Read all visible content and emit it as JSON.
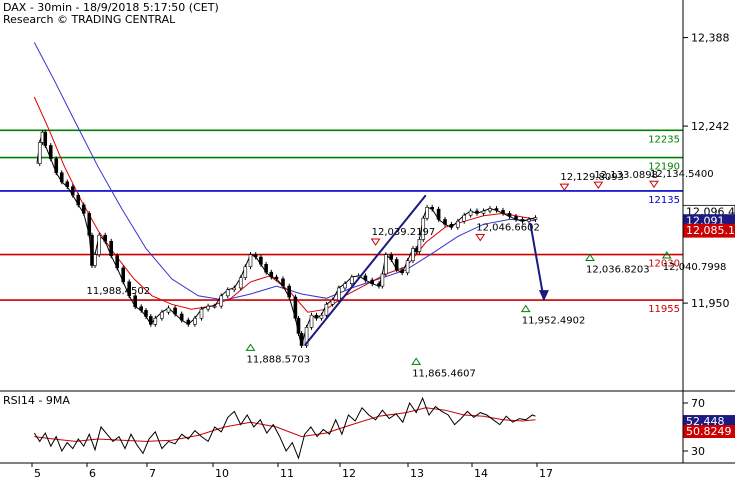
{
  "header": {
    "title": "DAX - 30min - 18/9/2018 5:17:50 (CET)",
    "credit": "Research © TRADING CENTRAL"
  },
  "chart_data": [
    {
      "type": "candlestick",
      "panel": "price",
      "ylim": [
        11805,
        12450
      ],
      "y_ticks": [
        12388,
        12242,
        11950
      ],
      "y_tick_labels": [
        "12,388",
        "12,242",
        "11,950"
      ],
      "x_tick_labels": [
        "5",
        "6",
        "7",
        "10",
        "11",
        "12",
        "13",
        "14",
        "17"
      ],
      "colors": {
        "resistance": "#008000",
        "pivot": "#0000cc",
        "support": "#cc0000",
        "ma_fast": "#dd0000",
        "ma_slow": "#3333cc",
        "price": "#000000",
        "forecast": "#1a1a80"
      },
      "levels": [
        {
          "value": 12235,
          "label": "12235",
          "role": "resistance"
        },
        {
          "value": 12190,
          "label": "12190",
          "role": "resistance"
        },
        {
          "value": 12135,
          "label": "12135",
          "role": "pivot"
        },
        {
          "value": 12030,
          "label": "12030",
          "role": "support"
        },
        {
          "value": 11955,
          "label": "11955",
          "role": "support"
        }
      ],
      "price_badges": [
        {
          "value": 12096.4,
          "label": "12,096.4",
          "bg": "#ffffff",
          "fg": "#000000"
        },
        {
          "value": 12091,
          "label": "12,091",
          "bg": "#1a1a80",
          "fg": "#ffffff"
        },
        {
          "value": 12085.1,
          "label": "12,085.1",
          "bg": "#cc0000",
          "fg": "#ffffff"
        }
      ],
      "swing_highs": [
        {
          "label": "12,039.2197",
          "value": 12039.2197,
          "x": 10.45
        },
        {
          "label": "12,046.6602",
          "value": 12046.6602,
          "x": 12.05
        },
        {
          "label": "12,129.8093",
          "value": 12129.8093,
          "x": 13.35
        },
        {
          "label": "12,133.0898",
          "value": 12133.0898,
          "x": 13.88
        },
        {
          "label": "12,134.5400",
          "value": 12134.54,
          "x": 14.75
        }
      ],
      "swing_lows": [
        {
          "label": "11,888.5703",
          "value": 11888.5703,
          "x": 8.5
        },
        {
          "label": "11,865.4607",
          "value": 11865.4607,
          "x": 11.05
        },
        {
          "label": "11,952.4902",
          "value": 11952.4902,
          "x": 12.75
        },
        {
          "label": "12,036.8203",
          "value": 12036.8203,
          "x": 13.75
        },
        {
          "label": "12,040.7998",
          "value": 12040.7998,
          "x": 14.95
        }
      ],
      "extra_labels": [
        {
          "label": "11,988.4502",
          "value": 11988.4502
        }
      ],
      "close": [
        [
          5.0,
          12180
        ],
        [
          5.05,
          12215
        ],
        [
          5.1,
          12232
        ],
        [
          5.15,
          12210
        ],
        [
          5.25,
          12188
        ],
        [
          5.35,
          12165
        ],
        [
          5.45,
          12150
        ],
        [
          5.55,
          12142
        ],
        [
          5.65,
          12128
        ],
        [
          5.75,
          12112
        ],
        [
          5.85,
          12098
        ],
        [
          5.95,
          12062
        ],
        [
          6.0,
          12012
        ],
        [
          6.05,
          12030
        ],
        [
          6.12,
          12062
        ],
        [
          6.22,
          12052
        ],
        [
          6.32,
          12028
        ],
        [
          6.42,
          12008
        ],
        [
          6.52,
          11985
        ],
        [
          6.62,
          11962
        ],
        [
          6.72,
          11944
        ],
        [
          6.82,
          11938
        ],
        [
          6.9,
          11928
        ],
        [
          6.98,
          11915
        ],
        [
          7.05,
          11925
        ],
        [
          7.15,
          11935
        ],
        [
          7.25,
          11942
        ],
        [
          7.35,
          11932
        ],
        [
          7.45,
          11922
        ],
        [
          7.55,
          11915
        ],
        [
          7.65,
          11925
        ],
        [
          7.75,
          11940
        ],
        [
          7.85,
          11945
        ],
        [
          7.95,
          11945
        ],
        [
          8.05,
          11962
        ],
        [
          8.15,
          11972
        ],
        [
          8.25,
          11975
        ],
        [
          8.35,
          11992
        ],
        [
          8.42,
          12010
        ],
        [
          8.5,
          12030
        ],
        [
          8.58,
          12026
        ],
        [
          8.66,
          12014
        ],
        [
          8.74,
          12001
        ],
        [
          8.82,
          11993
        ],
        [
          8.9,
          11990
        ],
        [
          9.0,
          11978
        ],
        [
          9.1,
          11960
        ],
        [
          9.2,
          11925
        ],
        [
          9.25,
          11900
        ],
        [
          9.3,
          11880
        ],
        [
          9.38,
          11910
        ],
        [
          9.46,
          11930
        ],
        [
          9.54,
          11925
        ],
        [
          9.62,
          11930
        ],
        [
          9.7,
          11948
        ],
        [
          9.8,
          11955
        ],
        [
          9.9,
          11975
        ],
        [
          10.0,
          11982
        ],
        [
          10.1,
          11993
        ],
        [
          10.2,
          11995
        ],
        [
          10.3,
          11988
        ],
        [
          10.4,
          11982
        ],
        [
          10.5,
          11978
        ],
        [
          10.55,
          11998
        ],
        [
          10.6,
          12030
        ],
        [
          10.68,
          12022
        ],
        [
          10.76,
          12005
        ],
        [
          10.84,
          12000
        ],
        [
          10.92,
          12020
        ],
        [
          11.0,
          12040
        ],
        [
          11.05,
          12035
        ],
        [
          11.1,
          12055
        ],
        [
          11.16,
          12090
        ],
        [
          11.22,
          12108
        ],
        [
          11.3,
          12105
        ],
        [
          11.4,
          12088
        ],
        [
          11.5,
          12080
        ],
        [
          11.6,
          12075
        ],
        [
          11.7,
          12085
        ],
        [
          11.8,
          12095
        ],
        [
          11.9,
          12102
        ],
        [
          12.0,
          12098
        ],
        [
          12.1,
          12102
        ],
        [
          12.2,
          12106
        ],
        [
          12.3,
          12103
        ],
        [
          12.4,
          12098
        ],
        [
          12.5,
          12093
        ],
        [
          12.6,
          12088
        ],
        [
          12.7,
          12085
        ],
        [
          12.8,
          12088
        ],
        [
          12.9,
          12091
        ]
      ],
      "ma_fast": [
        [
          4.95,
          12290
        ],
        [
          5.2,
          12240
        ],
        [
          5.5,
          12175
        ],
        [
          5.8,
          12120
        ],
        [
          6.1,
          12070
        ],
        [
          6.4,
          12028
        ],
        [
          6.7,
          11990
        ],
        [
          7.0,
          11962
        ],
        [
          7.3,
          11948
        ],
        [
          7.6,
          11940
        ],
        [
          7.9,
          11945
        ],
        [
          8.2,
          11958
        ],
        [
          8.5,
          11985
        ],
        [
          8.8,
          11995
        ],
        [
          9.1,
          11970
        ],
        [
          9.4,
          11935
        ],
        [
          9.7,
          11940
        ],
        [
          10.0,
          11962
        ],
        [
          10.3,
          11980
        ],
        [
          10.6,
          11998
        ],
        [
          10.9,
          12010
        ],
        [
          11.2,
          12050
        ],
        [
          11.5,
          12075
        ],
        [
          11.8,
          12085
        ],
        [
          12.1,
          12094
        ],
        [
          12.4,
          12098
        ],
        [
          12.7,
          12092
        ],
        [
          12.9,
          12088
        ]
      ],
      "ma_slow": [
        [
          4.95,
          12380
        ],
        [
          5.3,
          12320
        ],
        [
          5.7,
          12248
        ],
        [
          6.1,
          12175
        ],
        [
          6.5,
          12105
        ],
        [
          6.9,
          12040
        ],
        [
          7.3,
          11990
        ],
        [
          7.7,
          11962
        ],
        [
          8.1,
          11955
        ],
        [
          8.5,
          11965
        ],
        [
          8.9,
          11978
        ],
        [
          9.3,
          11965
        ],
        [
          9.7,
          11958
        ],
        [
          10.1,
          11975
        ],
        [
          10.5,
          11990
        ],
        [
          10.9,
          12005
        ],
        [
          11.3,
          12032
        ],
        [
          11.7,
          12060
        ],
        [
          12.1,
          12080
        ],
        [
          12.5,
          12088
        ],
        [
          12.9,
          12086
        ]
      ],
      "trendline": [
        [
          9.35,
          11880
        ],
        [
          11.2,
          12128
        ]
      ],
      "forecast_arrow": [
        [
          12.82,
          12082
        ],
        [
          13.03,
          11955
        ]
      ]
    },
    {
      "type": "line",
      "panel": "indicator",
      "title": "RSI14 - 9MA",
      "ylim": [
        20,
        80
      ],
      "y_ticks": [
        70,
        30
      ],
      "y_tick_labels": [
        "70",
        "30"
      ],
      "values": [
        {
          "value": 52.448,
          "label": "52.448",
          "bg": "#1a1a80",
          "fg": "#ffffff"
        },
        {
          "value": 50.8249,
          "label": "50.8249",
          "bg": "#cc0000",
          "fg": "#ffffff"
        }
      ],
      "rsi": [
        [
          4.95,
          45
        ],
        [
          5.05,
          38
        ],
        [
          5.15,
          45
        ],
        [
          5.25,
          34
        ],
        [
          5.35,
          42
        ],
        [
          5.45,
          30
        ],
        [
          5.55,
          37
        ],
        [
          5.65,
          32
        ],
        [
          5.75,
          40
        ],
        [
          5.85,
          34
        ],
        [
          5.95,
          44
        ],
        [
          6.05,
          31
        ],
        [
          6.15,
          50
        ],
        [
          6.25,
          44
        ],
        [
          6.35,
          38
        ],
        [
          6.45,
          42
        ],
        [
          6.55,
          32
        ],
        [
          6.65,
          44
        ],
        [
          6.75,
          35
        ],
        [
          6.85,
          28
        ],
        [
          6.95,
          40
        ],
        [
          7.05,
          46
        ],
        [
          7.15,
          32
        ],
        [
          7.25,
          38
        ],
        [
          7.35,
          36
        ],
        [
          7.45,
          44
        ],
        [
          7.55,
          40
        ],
        [
          7.65,
          47
        ],
        [
          7.75,
          42
        ],
        [
          7.85,
          38
        ],
        [
          7.95,
          50
        ],
        [
          8.05,
          46
        ],
        [
          8.15,
          58
        ],
        [
          8.25,
          63
        ],
        [
          8.35,
          52
        ],
        [
          8.45,
          60
        ],
        [
          8.55,
          50
        ],
        [
          8.65,
          56
        ],
        [
          8.75,
          45
        ],
        [
          8.85,
          52
        ],
        [
          8.95,
          42
        ],
        [
          9.05,
          30
        ],
        [
          9.15,
          37
        ],
        [
          9.25,
          24
        ],
        [
          9.35,
          44
        ],
        [
          9.45,
          50
        ],
        [
          9.55,
          42
        ],
        [
          9.65,
          48
        ],
        [
          9.75,
          44
        ],
        [
          9.85,
          56
        ],
        [
          9.95,
          44
        ],
        [
          10.05,
          60
        ],
        [
          10.15,
          55
        ],
        [
          10.25,
          66
        ],
        [
          10.35,
          60
        ],
        [
          10.45,
          56
        ],
        [
          10.55,
          64
        ],
        [
          10.65,
          57
        ],
        [
          10.75,
          61
        ],
        [
          10.85,
          54
        ],
        [
          10.95,
          70
        ],
        [
          11.05,
          62
        ],
        [
          11.15,
          74
        ],
        [
          11.25,
          60
        ],
        [
          11.35,
          67
        ],
        [
          11.45,
          63
        ],
        [
          11.55,
          60
        ],
        [
          11.65,
          52
        ],
        [
          11.75,
          57
        ],
        [
          11.85,
          63
        ],
        [
          11.95,
          58
        ],
        [
          12.05,
          62
        ],
        [
          12.15,
          60
        ],
        [
          12.25,
          56
        ],
        [
          12.35,
          52
        ],
        [
          12.45,
          59
        ],
        [
          12.55,
          54
        ],
        [
          12.65,
          57
        ],
        [
          12.75,
          56
        ],
        [
          12.85,
          60
        ],
        [
          12.9,
          59
        ]
      ],
      "ma": [
        [
          4.95,
          42
        ],
        [
          5.3,
          40
        ],
        [
          5.7,
          38
        ],
        [
          6.1,
          40
        ],
        [
          6.5,
          39
        ],
        [
          6.9,
          38
        ],
        [
          7.3,
          39
        ],
        [
          7.7,
          43
        ],
        [
          8.1,
          50
        ],
        [
          8.5,
          54
        ],
        [
          8.9,
          50
        ],
        [
          9.3,
          42
        ],
        [
          9.7,
          45
        ],
        [
          10.1,
          52
        ],
        [
          10.5,
          59
        ],
        [
          10.9,
          62
        ],
        [
          11.2,
          66
        ],
        [
          11.5,
          64
        ],
        [
          11.8,
          60
        ],
        [
          12.1,
          59
        ],
        [
          12.4,
          56
        ],
        [
          12.7,
          55
        ],
        [
          12.9,
          56
        ]
      ]
    }
  ]
}
